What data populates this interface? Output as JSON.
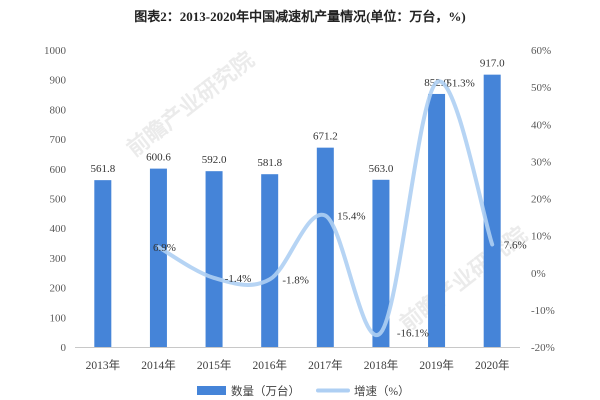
{
  "colors": {
    "bar": "#4584d8",
    "line": "#aecff3",
    "axis_line": "#c8c8c8",
    "text": "#404040"
  },
  "watermark": "前瞻产业研究院",
  "chart_data": {
    "type": "bar",
    "title": "图表2：2013-2020年中国减速机产量情况(单位：万台，%)",
    "xlabel": "",
    "ylabel": "",
    "categories": [
      "2013年",
      "2014年",
      "2015年",
      "2016年",
      "2017年",
      "2018年",
      "2019年",
      "2020年"
    ],
    "series": [
      {
        "name": "数量（万台）",
        "type": "bar",
        "axis": "left",
        "values": [
          561.8,
          600.6,
          592.0,
          581.8,
          671.2,
          563.0,
          852.0,
          917.0
        ]
      },
      {
        "name": "增速（%）",
        "type": "line",
        "smooth": true,
        "axis": "right",
        "values": [
          null,
          6.9,
          -1.4,
          -1.8,
          15.4,
          -16.1,
          51.3,
          7.6
        ]
      }
    ],
    "y_left": {
      "range": [
        0,
        1000
      ],
      "tick_labels": [
        "0",
        "100",
        "200",
        "300",
        "400",
        "500",
        "600",
        "700",
        "800",
        "900",
        "1000"
      ]
    },
    "y_right": {
      "range": [
        -20,
        60
      ],
      "tick_labels": [
        "-20%",
        "-10%",
        "0%",
        "10%",
        "20%",
        "30%",
        "40%",
        "50%",
        "60%"
      ]
    },
    "grid": false,
    "legend_position": "bottom"
  }
}
